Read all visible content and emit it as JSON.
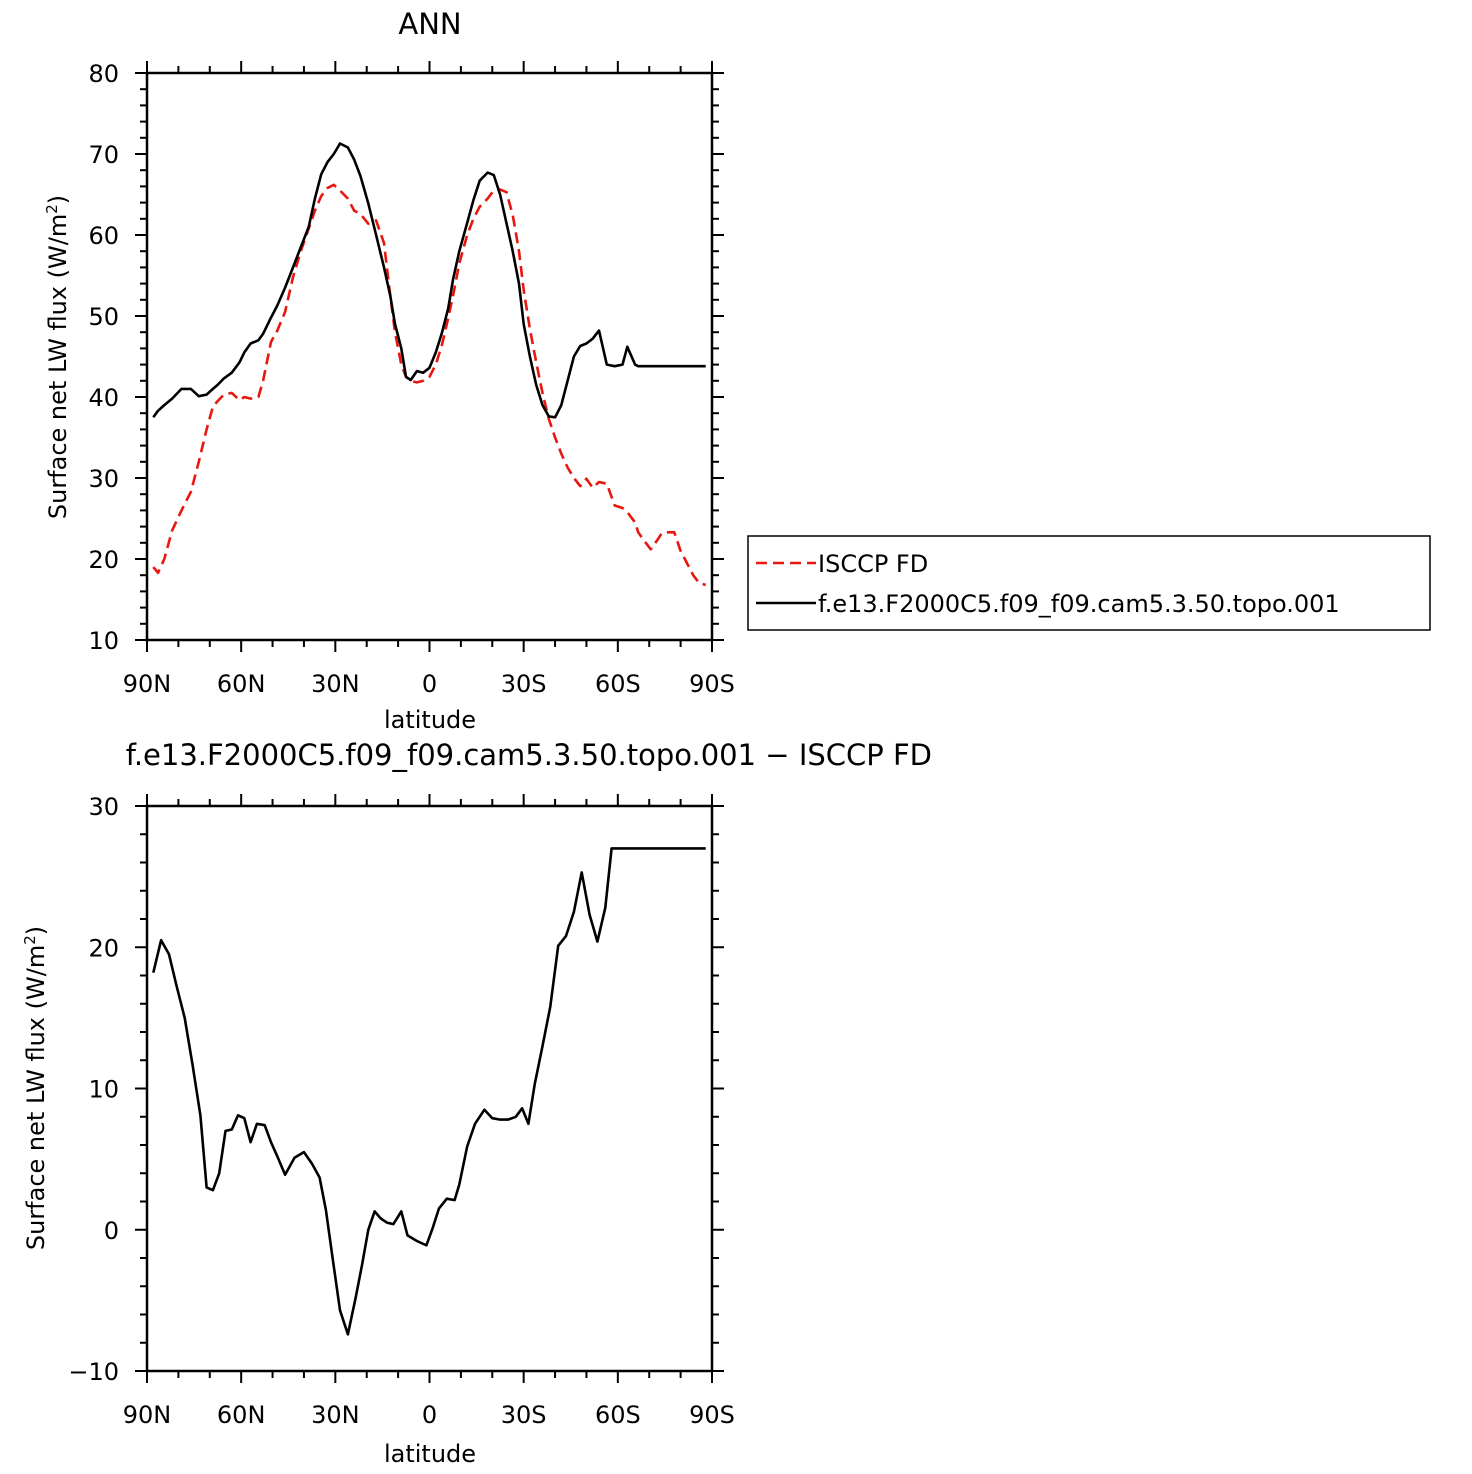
{
  "chart_data": [
    {
      "type": "line",
      "title": "ANN",
      "xlabel": "latitude",
      "ylabel_main": "Surface net LW flux (W/m",
      "ylabel_sup": "2",
      "ylabel_close": ")",
      "xlim": [
        90,
        -90
      ],
      "ylim": [
        10,
        80
      ],
      "xticks": [
        90,
        60,
        30,
        0,
        -30,
        -60,
        -90
      ],
      "xticklabels": [
        "90N",
        "60N",
        "30N",
        "0",
        "30S",
        "60S",
        "90S"
      ],
      "yticks": [
        10,
        20,
        30,
        40,
        50,
        60,
        70,
        80
      ],
      "yticklabels": [
        "10",
        "20",
        "30",
        "40",
        "50",
        "60",
        "70",
        "80"
      ],
      "legend": {
        "placement": "right"
      },
      "series": [
        {
          "name": "ISCCP FD",
          "color": "#e8170f",
          "style": "dashed",
          "x": [
            88,
            86.5,
            84.5,
            82,
            79,
            76,
            73.5,
            71,
            69,
            67.5,
            65.5,
            63,
            60.5,
            59,
            57,
            54.5,
            53,
            50.5,
            48.5,
            46,
            43.5,
            41,
            38.5,
            36.5,
            34.5,
            32.5,
            30.5,
            28.5,
            26,
            24,
            22,
            19.5,
            17,
            14.5,
            12.5,
            11,
            9,
            7.5,
            6,
            4,
            2,
            0,
            -2,
            -4,
            -6,
            -7.5,
            -9.5,
            -12,
            -14,
            -16,
            -18.5,
            -20.5,
            -22.5,
            -24.5,
            -26.5,
            -28.5,
            -30,
            -32,
            -34,
            -36,
            -38,
            -40,
            -42,
            -44,
            -46,
            -48,
            -50,
            -52,
            -54,
            -56.5,
            -59,
            -61.5,
            -63,
            -65.5,
            -66.5,
            -68.5,
            -70.5,
            -72.5,
            -74,
            -76,
            -78,
            -80,
            -82,
            -84,
            -86,
            -88
          ],
          "values": [
            19,
            18.3,
            20,
            23.5,
            26,
            28.3,
            32,
            36,
            38.8,
            39.5,
            40.3,
            40.5,
            39.6,
            40,
            39.8,
            40,
            42,
            46.8,
            48.2,
            50.5,
            54.8,
            58,
            60.8,
            63,
            64.8,
            65.8,
            66.2,
            65.5,
            64.5,
            63,
            62.6,
            61.4,
            61.8,
            59,
            52.5,
            48,
            44,
            42.5,
            42,
            41.8,
            42,
            42.5,
            44,
            46.5,
            49.8,
            52.5,
            56.5,
            60,
            62,
            63.5,
            64.5,
            65.5,
            65.6,
            65.3,
            62.5,
            58,
            53.2,
            48.4,
            44.3,
            40.5,
            37.3,
            35,
            33,
            31.3,
            30,
            29,
            29.9,
            28.8,
            29.5,
            29.3,
            26.6,
            26.3,
            25.8,
            24.5,
            23.3,
            22.2,
            21.2,
            22.3,
            23.2,
            23.3,
            23.3,
            21,
            19.5,
            18,
            17,
            16.8
          ]
        },
        {
          "name": "f.e13.F2000C5.f09_f09.cam5.3.50.topo.001",
          "color": "#000000",
          "style": "solid",
          "x": [
            88,
            86.5,
            84.5,
            82,
            79,
            76,
            73.5,
            71,
            69,
            67.5,
            65.5,
            63,
            60.5,
            59,
            57,
            54.5,
            53,
            50.5,
            48.5,
            46,
            43.5,
            41,
            38.5,
            36.5,
            34.5,
            32.5,
            30.5,
            28.5,
            26,
            24,
            22,
            19.5,
            17,
            14.5,
            12.5,
            11,
            9,
            7.5,
            6,
            4,
            2,
            0,
            -2,
            -4,
            -6,
            -7.5,
            -9.5,
            -12,
            -14,
            -16,
            -18.5,
            -20.5,
            -22.5,
            -24.5,
            -26.5,
            -28.5,
            -30,
            -32,
            -34,
            -36,
            -38,
            -40,
            -42,
            -44,
            -46,
            -48,
            -50,
            -52,
            -54,
            -56.5,
            -59,
            -61.5,
            -63,
            -65.5,
            -66.5,
            -68.5,
            -70.5,
            -72.5,
            -74,
            -76,
            -78,
            -80,
            -82,
            -84,
            -86,
            -88
          ],
          "values": [
            37.5,
            38.3,
            39,
            39.8,
            41,
            41,
            40.1,
            40.3,
            41,
            41.5,
            42.3,
            43,
            44.3,
            45.5,
            46.6,
            47,
            47.8,
            49.8,
            51.3,
            53.5,
            56,
            58.5,
            61,
            64.5,
            67.5,
            69,
            70,
            71.3,
            70.8,
            69.3,
            67.3,
            63.9,
            60,
            56,
            52.5,
            49,
            46,
            42.5,
            42.1,
            43.2,
            43,
            43.6,
            45.5,
            48,
            51,
            54.5,
            58,
            61.5,
            64.3,
            66.7,
            67.7,
            67.4,
            65,
            61.5,
            58,
            54,
            49,
            45,
            41.5,
            39,
            37.6,
            37.5,
            39,
            42,
            45,
            46.3,
            46.6,
            47.2,
            48.2,
            44,
            43.8,
            44,
            46.2,
            44,
            43.8,
            43.8,
            43.8,
            43.8,
            43.8,
            43.8,
            43.8,
            43.8,
            43.8,
            43.8,
            43.8,
            43.8
          ]
        }
      ]
    },
    {
      "type": "line",
      "title": "f.e13.F2000C5.f09_f09.cam5.3.50.topo.001 − ISCCP FD",
      "xlabel": "latitude",
      "ylabel_main": "Surface net LW flux (W/m",
      "ylabel_sup": "2",
      "ylabel_close": ")",
      "xlim": [
        90,
        -90
      ],
      "ylim": [
        -10,
        30
      ],
      "xticks": [
        90,
        60,
        30,
        0,
        -30,
        -60,
        -90
      ],
      "xticklabels": [
        "90N",
        "60N",
        "30N",
        "0",
        "30S",
        "60S",
        "90S"
      ],
      "yticks": [
        -10,
        0,
        10,
        20,
        30
      ],
      "yticklabels": [
        "−10",
        "0",
        "10",
        "20",
        "30"
      ],
      "series": [
        {
          "color": "#000000",
          "style": "solid",
          "x": [
            88,
            85.5,
            83,
            80.5,
            78,
            75.5,
            73,
            71,
            69,
            67,
            65,
            63,
            61,
            59,
            57,
            55,
            52.5,
            50.5,
            48.5,
            46,
            43,
            40,
            37.5,
            35,
            33,
            31,
            28.5,
            26,
            23.5,
            21.5,
            19.5,
            17.5,
            15.5,
            13.5,
            11.5,
            9,
            7,
            4,
            1,
            -1,
            -3,
            -5.5,
            -8,
            -9.5,
            -12,
            -14.5,
            -17.5,
            -20,
            -22.5,
            -25,
            -27.5,
            -29.5,
            -31.5,
            -33.5,
            -36,
            -38.5,
            -41,
            -43.5,
            -46,
            -48.5,
            -51,
            -53.5,
            -56,
            -58,
            -60,
            -62.5,
            -65,
            -67,
            -69.5,
            -71,
            -73.5,
            -75.5,
            -77.5,
            -80,
            -82.5,
            -85,
            -88
          ],
          "values": [
            18.2,
            20.5,
            19.5,
            17.2,
            15,
            11.7,
            8.1,
            3,
            2.8,
            4,
            7,
            7.1,
            8.1,
            7.9,
            6.2,
            7.5,
            7.4,
            6.2,
            5.2,
            3.9,
            5.1,
            5.5,
            4.7,
            3.7,
            1.4,
            -1.8,
            -5.7,
            -7.4,
            -4.8,
            -2.5,
            0,
            1.3,
            0.8,
            0.5,
            0.4,
            1.3,
            -0.4,
            -0.8,
            -1.1,
            0.1,
            1.5,
            2.2,
            2.1,
            3.2,
            5.9,
            7.5,
            8.5,
            7.9,
            7.8,
            7.8,
            8.0,
            8.6,
            7.5,
            10.3,
            13,
            15.8,
            20.1,
            20.8,
            22.5,
            25.3,
            22.3,
            20.4,
            22.8,
            27,
            27,
            27,
            27,
            27,
            27,
            27,
            27,
            27,
            27,
            27,
            27,
            27,
            27
          ]
        }
      ]
    }
  ]
}
